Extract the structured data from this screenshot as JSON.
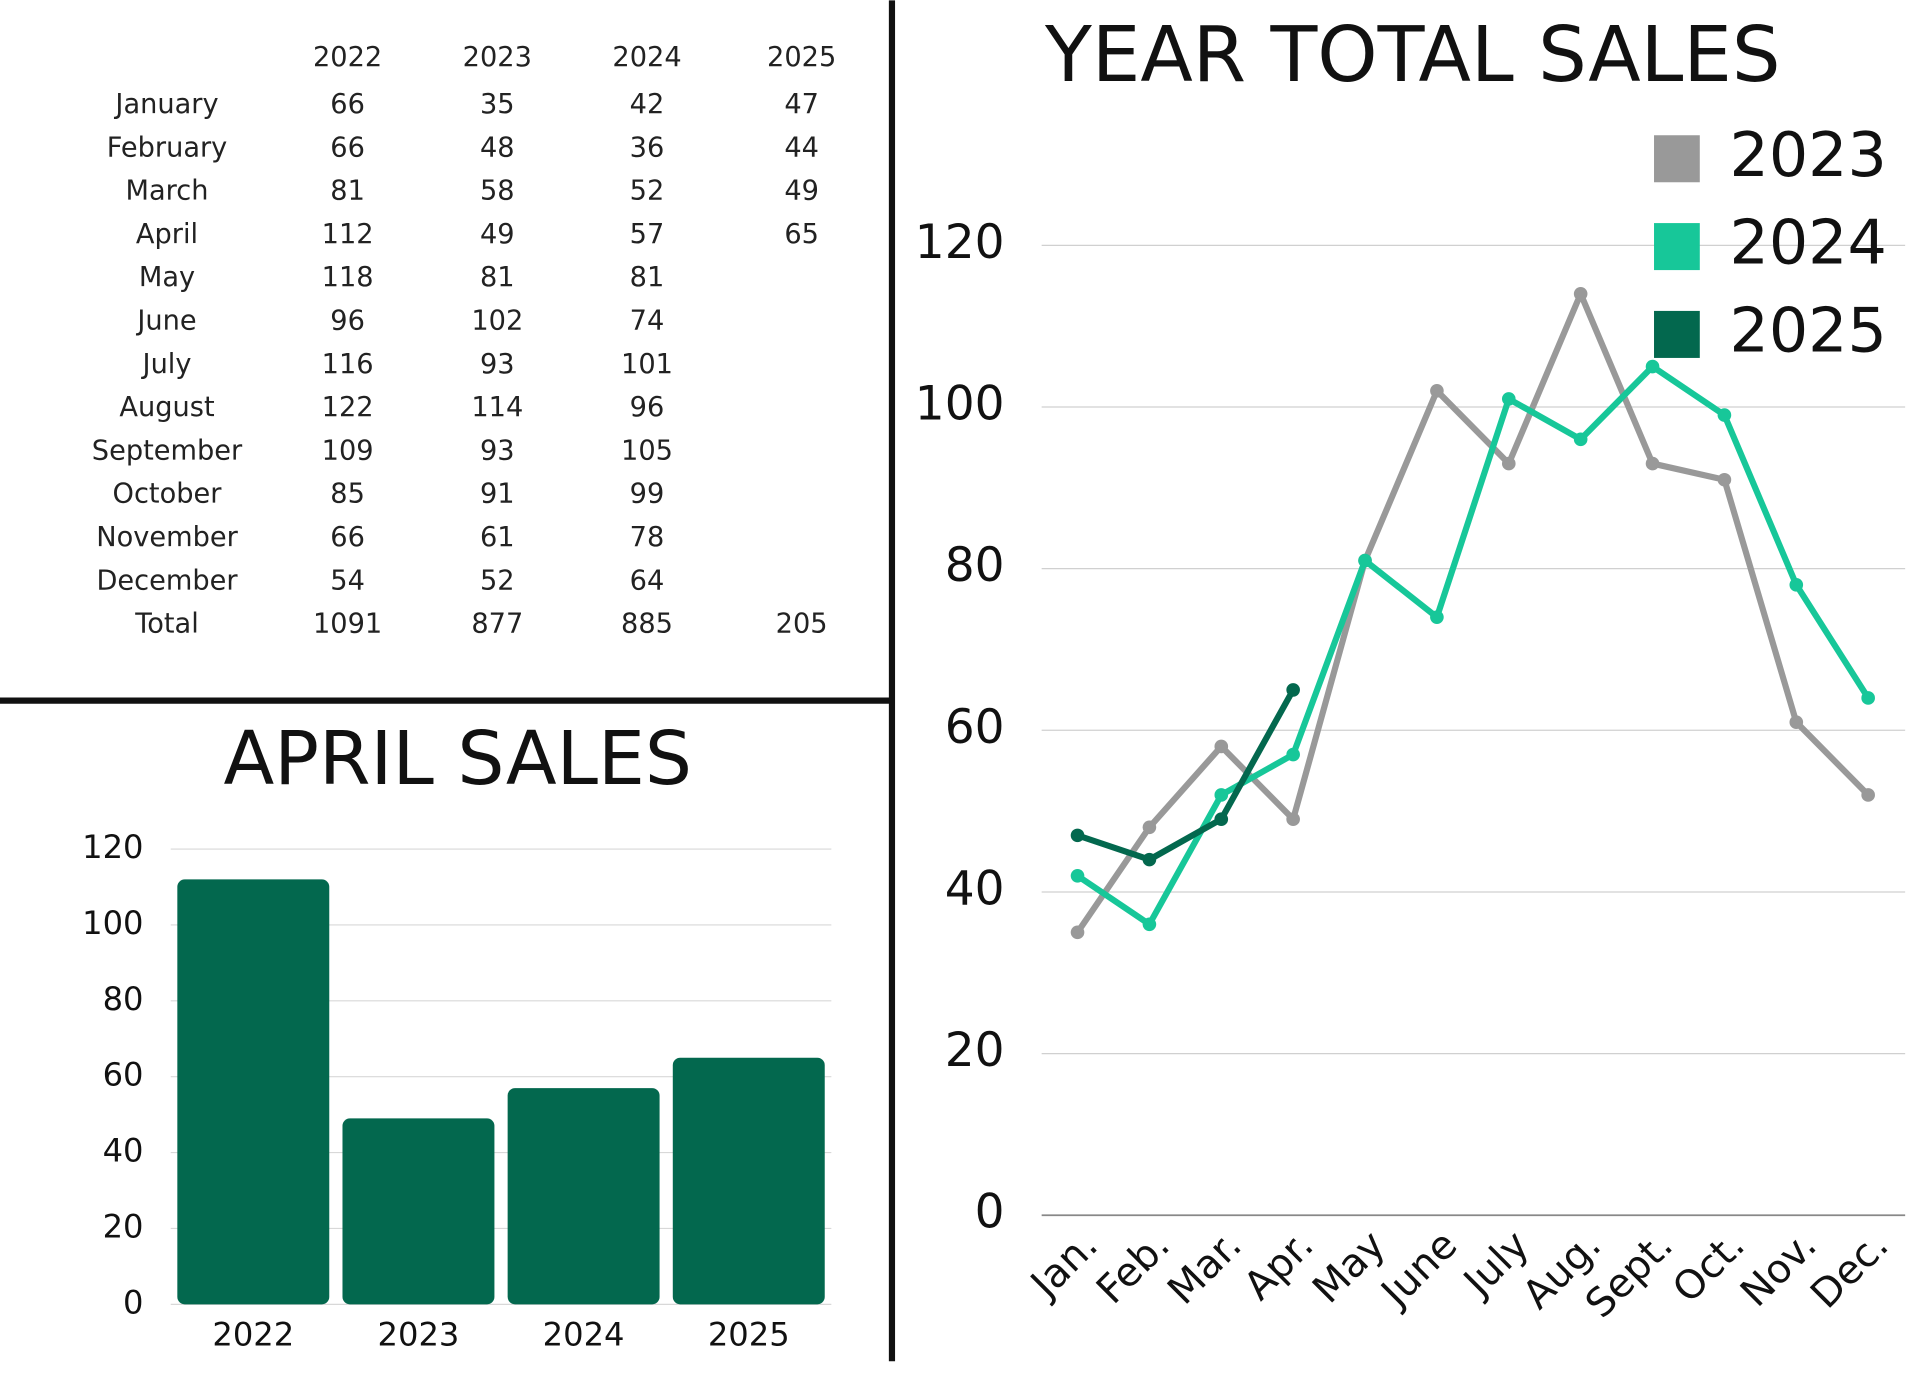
{
  "table": {
    "columns": [
      "2022",
      "2023",
      "2024",
      "2025"
    ],
    "rows": [
      {
        "label": "January",
        "values": [
          66,
          35,
          42,
          47
        ]
      },
      {
        "label": "February",
        "values": [
          66,
          48,
          36,
          44
        ]
      },
      {
        "label": "March",
        "values": [
          81,
          58,
          52,
          49
        ]
      },
      {
        "label": "April",
        "values": [
          112,
          49,
          57,
          65
        ]
      },
      {
        "label": "May",
        "values": [
          118,
          81,
          81
        ]
      },
      {
        "label": "June",
        "values": [
          96,
          102,
          74
        ]
      },
      {
        "label": "July",
        "values": [
          116,
          93,
          101
        ]
      },
      {
        "label": "August",
        "values": [
          122,
          114,
          96
        ]
      },
      {
        "label": "September",
        "values": [
          109,
          93,
          105
        ]
      },
      {
        "label": "October",
        "values": [
          85,
          91,
          99
        ]
      },
      {
        "label": "November",
        "values": [
          66,
          61,
          78
        ]
      },
      {
        "label": "December",
        "values": [
          54,
          52,
          64
        ]
      },
      {
        "label": "Total",
        "values": [
          1091,
          877,
          885,
          205
        ]
      }
    ]
  },
  "chart_data": [
    {
      "type": "bar",
      "title": "APRIL SALES",
      "categories": [
        "2022",
        "2023",
        "2024",
        "2025"
      ],
      "values": [
        112,
        49,
        57,
        65
      ],
      "color": "#03684e",
      "ylim": [
        0,
        120
      ],
      "yticks": [
        0,
        20,
        40,
        60,
        80,
        100,
        120
      ],
      "grid": true
    },
    {
      "type": "line",
      "title": "YEAR TOTAL SALES",
      "categories": [
        "Jan.",
        "Feb.",
        "Mar.",
        "Apr.",
        "May",
        "June",
        "July",
        "Aug.",
        "Sept.",
        "Oct.",
        "Nov.",
        "Dec."
      ],
      "series": [
        {
          "name": "2023",
          "color": "#999999",
          "values": [
            35,
            48,
            58,
            49,
            81,
            102,
            93,
            114,
            93,
            91,
            61,
            52
          ]
        },
        {
          "name": "2024",
          "color": "#17c799",
          "values": [
            42,
            36,
            52,
            57,
            81,
            74,
            101,
            96,
            105,
            99,
            78,
            64
          ]
        },
        {
          "name": "2025",
          "color": "#03684e",
          "values": [
            47,
            44,
            49,
            65,
            null,
            null,
            null,
            null,
            null,
            null,
            null,
            null
          ]
        }
      ],
      "ylim": [
        0,
        120
      ],
      "yticks": [
        0,
        20,
        40,
        60,
        80,
        100,
        120
      ],
      "grid": true,
      "legend": "top-right"
    }
  ]
}
